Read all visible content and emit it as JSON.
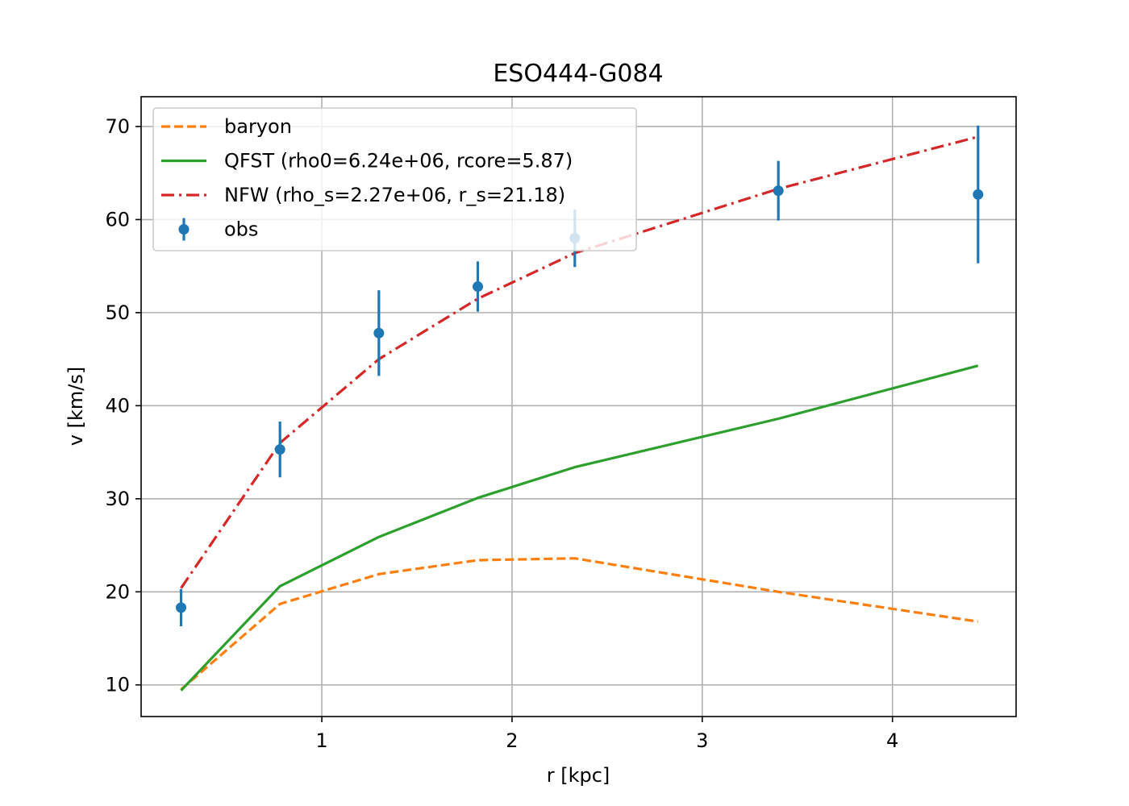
{
  "chart_data": {
    "type": "line",
    "title": "ESO444-G084",
    "xlabel": "r [kpc]",
    "ylabel": "v [km/s]",
    "xlim": [
      0.05,
      4.65
    ],
    "ylim": [
      6.6,
      73.2
    ],
    "xticks": [
      1,
      2,
      3,
      4
    ],
    "yticks": [
      10,
      20,
      30,
      40,
      50,
      60,
      70
    ],
    "grid": true,
    "legend_position": "upper-left",
    "x": [
      0.26,
      0.78,
      1.3,
      1.82,
      2.33,
      3.4,
      4.45
    ],
    "series": [
      {
        "name": "baryon",
        "style": "dashed",
        "color": "#ff7f0e",
        "values": [
          9.5,
          18.7,
          21.9,
          23.4,
          23.6,
          20.0,
          16.8
        ]
      },
      {
        "name": "QFST (rho0=6.24e+06, rcore=5.87)",
        "style": "solid",
        "color": "#2ca02c",
        "values": [
          9.4,
          20.6,
          25.9,
          30.1,
          33.4,
          38.6,
          44.3
        ]
      },
      {
        "name": "NFW (rho_s=2.27e+06, r_s=21.18)",
        "style": "dashdot",
        "color": "#d62728",
        "values": [
          20.4,
          36.0,
          45.0,
          51.5,
          56.4,
          63.3,
          68.9
        ]
      },
      {
        "name": "obs",
        "style": "errorbar",
        "color": "#1f77b4",
        "values": [
          18.3,
          35.3,
          47.8,
          52.8,
          58.0,
          63.1,
          62.7
        ],
        "errors": [
          2.0,
          3.0,
          4.6,
          2.7,
          3.1,
          3.2,
          7.4
        ]
      }
    ]
  }
}
